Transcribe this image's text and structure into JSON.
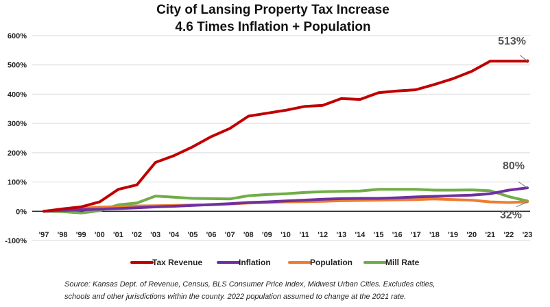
{
  "chart_data": {
    "type": "line",
    "title_lines": [
      "City of Lansing Property Tax Increase",
      "4.6 Times Inflation + Population"
    ],
    "x": [
      "'97",
      "'98",
      "'99",
      "'00",
      "'01",
      "'02",
      "'03",
      "'04",
      "'05",
      "'06",
      "'07",
      "'08",
      "'09",
      "'10",
      "'11",
      "'12",
      "'13",
      "'14",
      "'15",
      "'16",
      "'17",
      "'18",
      "'19",
      "'20",
      "'21",
      "'22",
      "'23"
    ],
    "y_ticks": [
      "600%",
      "500%",
      "400%",
      "300%",
      "200%",
      "100%",
      "0%",
      "-100%"
    ],
    "ylim": [
      -100,
      600
    ],
    "y_unit": "%",
    "grid": "horizontal",
    "legend_position": "bottom",
    "series": [
      {
        "name": "Tax Revenue",
        "color": "#c00000",
        "values": [
          0,
          8,
          15,
          32,
          75,
          90,
          167,
          190,
          220,
          255,
          283,
          325,
          335,
          345,
          358,
          362,
          385,
          382,
          405,
          411,
          415,
          433,
          453,
          478,
          513,
          513,
          513
        ]
      },
      {
        "name": "Inflation",
        "color": "#7030a0",
        "values": [
          0,
          3,
          5,
          7,
          9,
          12,
          15,
          17,
          20,
          23,
          26,
          30,
          32,
          35,
          38,
          41,
          43,
          44,
          44,
          46,
          49,
          51,
          53,
          55,
          60,
          72,
          80
        ]
      },
      {
        "name": "Population",
        "color": "#ed7d31",
        "values": [
          0,
          5,
          10,
          14,
          16,
          18,
          19,
          20,
          21,
          22,
          25,
          28,
          30,
          32,
          33,
          34,
          36,
          37,
          38,
          39,
          40,
          42,
          40,
          38,
          32,
          30,
          32
        ]
      },
      {
        "name": "Mill Rate",
        "color": "#70ad47",
        "values": [
          0,
          -1,
          -6,
          2,
          22,
          28,
          52,
          48,
          44,
          43,
          42,
          53,
          57,
          60,
          64,
          67,
          68,
          69,
          75,
          75,
          75,
          72,
          72,
          73,
          70,
          50,
          35
        ]
      }
    ],
    "annotations": [
      {
        "text": "513%",
        "series": 0
      },
      {
        "text": "80%",
        "series": 1
      },
      {
        "text": "32%",
        "series": 2
      }
    ]
  },
  "source_lines": [
    "Source: Kansas Dept. of Revenue, Census, BLS Consumer Price Index, Midwest Urban Cities.  Excludes cities,",
    "schools and other jurisdictions within the county.  2022 population assumed to change at the 2021 rate."
  ]
}
